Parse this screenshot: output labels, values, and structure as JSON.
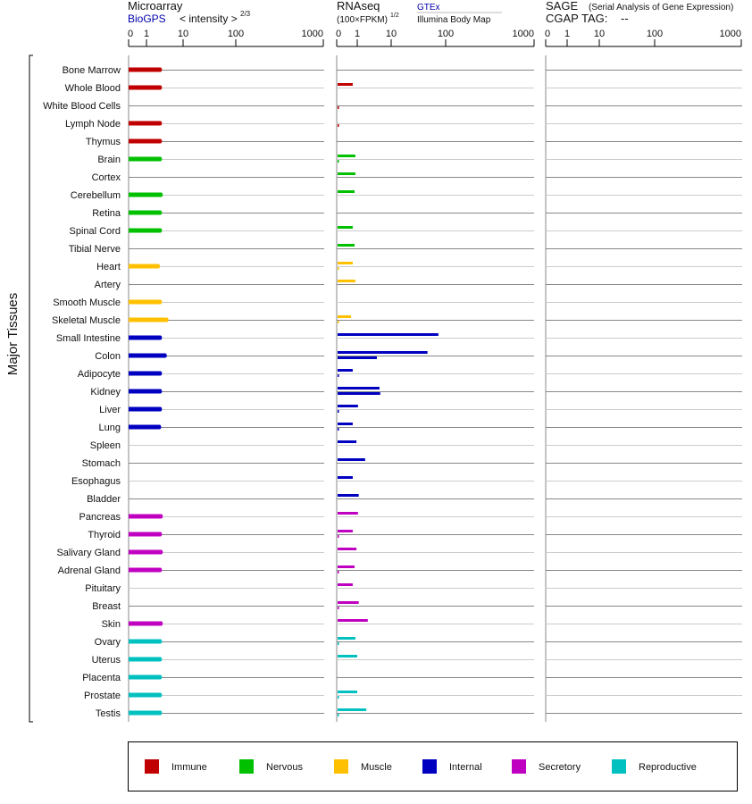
{
  "chart_data": {
    "type": "bar",
    "y_axis_label": "Major Tissues",
    "panels": {
      "microarray": {
        "title": "Microarray",
        "source": "BioGPS",
        "unit_label": "< intensity >",
        "unit_exponent": "2/3",
        "ticks": [
          "0",
          "1",
          "10",
          "100",
          "1000"
        ]
      },
      "rnaseq": {
        "title": "RNAseq",
        "unit_label": "(100×FPKM)",
        "unit_exponent": "1/2",
        "source_1": "GTEx",
        "source_2": "Illumina Body Map",
        "ticks": [
          "0",
          "1",
          "10",
          "100",
          "1000"
        ]
      },
      "sage": {
        "title": "SAGE",
        "subtitle": "(Serial Analysis of Gene Expression)",
        "tag_label": "CGAP TAG:",
        "tag_value": "--",
        "ticks": [
          "0",
          "1",
          "10",
          "100",
          "1000"
        ]
      }
    },
    "categories": [
      {
        "name": "Immune",
        "color": "#c00000"
      },
      {
        "name": "Nervous",
        "color": "#00c000"
      },
      {
        "name": "Muscle",
        "color": "#ffc000"
      },
      {
        "name": "Internal",
        "color": "#0000c0"
      },
      {
        "name": "Secretory",
        "color": "#c000c0"
      },
      {
        "name": "Reproductive",
        "color": "#00c0c0"
      }
    ],
    "tissues": [
      {
        "name": "Bone Marrow",
        "cat": 0,
        "microarray": 4.8,
        "gtex": null,
        "illumina": null
      },
      {
        "name": "Whole Blood",
        "cat": 0,
        "microarray": 4.8,
        "gtex": 0.78,
        "illumina": null
      },
      {
        "name": "White Blood Cells",
        "cat": 0,
        "microarray": null,
        "gtex": null,
        "illumina": 0.1
      },
      {
        "name": "Lymph Node",
        "cat": 0,
        "microarray": 4.8,
        "gtex": null,
        "illumina": 0.1
      },
      {
        "name": "Thymus",
        "cat": 0,
        "microarray": 4.8,
        "gtex": null,
        "illumina": null
      },
      {
        "name": "Brain",
        "cat": 1,
        "microarray": 4.8,
        "gtex": 0.91,
        "illumina": 0.1
      },
      {
        "name": "Cortex",
        "cat": 1,
        "microarray": null,
        "gtex": 0.91,
        "illumina": null
      },
      {
        "name": "Cerebellum",
        "cat": 1,
        "microarray": 5.0,
        "gtex": 0.87,
        "illumina": null
      },
      {
        "name": "Retina",
        "cat": 1,
        "microarray": 4.8,
        "gtex": null,
        "illumina": null
      },
      {
        "name": "Spinal Cord",
        "cat": 1,
        "microarray": 4.8,
        "gtex": 0.78,
        "illumina": null
      },
      {
        "name": "Tibial Nerve",
        "cat": 1,
        "microarray": null,
        "gtex": 0.87,
        "illumina": null
      },
      {
        "name": "Heart",
        "cat": 2,
        "microarray": 4.3,
        "gtex": 0.78,
        "illumina": 0.1
      },
      {
        "name": "Artery",
        "cat": 2,
        "microarray": null,
        "gtex": 0.91,
        "illumina": null
      },
      {
        "name": "Smooth Muscle",
        "cat": 2,
        "microarray": 4.8,
        "gtex": null,
        "illumina": null
      },
      {
        "name": "Skeletal Muscle",
        "cat": 2,
        "microarray": 6.4,
        "gtex": 0.7,
        "illumina": 0.1
      },
      {
        "name": "Small Intestine",
        "cat": 3,
        "microarray": 4.8,
        "gtex": 88,
        "illumina": null
      },
      {
        "name": "Colon",
        "cat": 3,
        "microarray": 6.0,
        "gtex": 70,
        "illumina": 6.2
      },
      {
        "name": "Adipocyte",
        "cat": 3,
        "microarray": 4.8,
        "gtex": 0.78,
        "illumina": 0.1
      },
      {
        "name": "Kidney",
        "cat": 3,
        "microarray": 4.8,
        "gtex": 6.9,
        "illumina": 7.1
      },
      {
        "name": "Liver",
        "cat": 3,
        "microarray": 4.8,
        "gtex": 1.2,
        "illumina": 0.1
      },
      {
        "name": "Lung",
        "cat": 3,
        "microarray": 4.6,
        "gtex": 0.78,
        "illumina": 0.1
      },
      {
        "name": "Spleen",
        "cat": 3,
        "microarray": null,
        "gtex": 0.96,
        "illumina": null
      },
      {
        "name": "Stomach",
        "cat": 3,
        "microarray": null,
        "gtex": 3.1,
        "illumina": null
      },
      {
        "name": "Esophagus",
        "cat": 3,
        "microarray": null,
        "gtex": 0.78,
        "illumina": null
      },
      {
        "name": "Bladder",
        "cat": 3,
        "microarray": null,
        "gtex": 1.4,
        "illumina": null
      },
      {
        "name": "Pancreas",
        "cat": 4,
        "microarray": 5.0,
        "gtex": 1.2,
        "illumina": null
      },
      {
        "name": "Thyroid",
        "cat": 4,
        "microarray": 4.8,
        "gtex": 0.78,
        "illumina": 0.1
      },
      {
        "name": "Salivary Gland",
        "cat": 4,
        "microarray": 5.0,
        "gtex": 0.96,
        "illumina": null
      },
      {
        "name": "Adrenal Gland",
        "cat": 4,
        "microarray": 4.8,
        "gtex": 0.87,
        "illumina": 0.1
      },
      {
        "name": "Pituitary",
        "cat": 4,
        "microarray": null,
        "gtex": 0.78,
        "illumina": null
      },
      {
        "name": "Breast",
        "cat": 4,
        "microarray": null,
        "gtex": 1.4,
        "illumina": 0.1
      },
      {
        "name": "Skin",
        "cat": 4,
        "microarray": 5.0,
        "gtex": 3.8,
        "illumina": null
      },
      {
        "name": "Ovary",
        "cat": 5,
        "microarray": 4.8,
        "gtex": 0.91,
        "illumina": 0.1
      },
      {
        "name": "Uterus",
        "cat": 5,
        "microarray": 4.8,
        "gtex": 1.0,
        "illumina": null
      },
      {
        "name": "Placenta",
        "cat": 5,
        "microarray": 4.8,
        "gtex": null,
        "illumina": null
      },
      {
        "name": "Prostate",
        "cat": 5,
        "microarray": 4.8,
        "gtex": 1.0,
        "illumina": 0.1
      },
      {
        "name": "Testis",
        "cat": 5,
        "microarray": 4.8,
        "gtex": 3.4,
        "illumina": 0.1
      }
    ]
  }
}
